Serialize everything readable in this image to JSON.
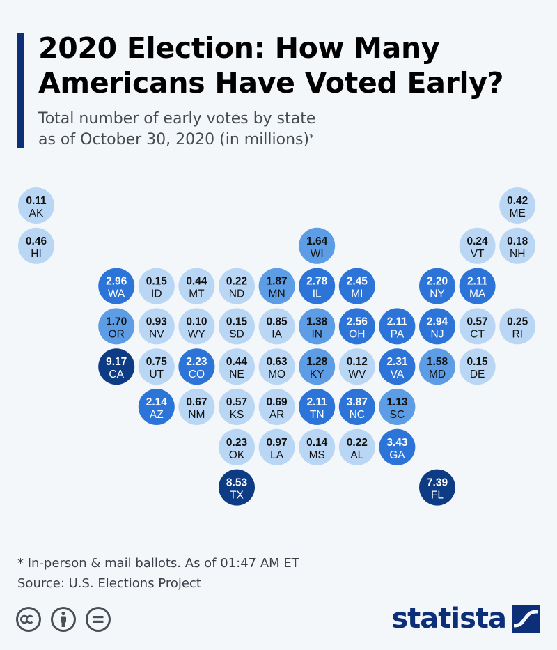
{
  "header": {
    "title_line1": "2020 Election: How Many",
    "title_line2": "Americans Have Voted Early?",
    "subtitle_line1": "Total number of early votes by state",
    "subtitle_line2": "as of October 30, 2020 (in millions)",
    "subtitle_mark": "*"
  },
  "footer": {
    "note": "* In-person & mail ballots. As of 01:47 AM ET",
    "source": "Source: U.S. Elections Project",
    "brand": "statista"
  },
  "colors": {
    "accent": "#0d2f77",
    "bin_low": "#b9d7f4",
    "bin_mid": "#5c9de6",
    "bin_high": "#2d74d8",
    "bin_max": "#0d3b84"
  },
  "chart_data": {
    "type": "tile-map",
    "unit": "millions",
    "states": [
      {
        "code": "AK",
        "value": 0.11,
        "row": 0,
        "col": 0
      },
      {
        "code": "ME",
        "value": 0.42,
        "row": 0,
        "col": 12
      },
      {
        "code": "HI",
        "value": 0.46,
        "row": 1,
        "col": 0
      },
      {
        "code": "WI",
        "value": 1.64,
        "row": 1,
        "col": 7
      },
      {
        "code": "VT",
        "value": 0.24,
        "row": 1,
        "col": 11
      },
      {
        "code": "NH",
        "value": 0.18,
        "row": 1,
        "col": 12
      },
      {
        "code": "WA",
        "value": 2.96,
        "row": 2,
        "col": 2
      },
      {
        "code": "ID",
        "value": 0.15,
        "row": 2,
        "col": 3
      },
      {
        "code": "MT",
        "value": 0.44,
        "row": 2,
        "col": 4
      },
      {
        "code": "ND",
        "value": 0.22,
        "row": 2,
        "col": 5
      },
      {
        "code": "MN",
        "value": 1.87,
        "row": 2,
        "col": 6
      },
      {
        "code": "IL",
        "value": 2.78,
        "row": 2,
        "col": 7
      },
      {
        "code": "MI",
        "value": 2.45,
        "row": 2,
        "col": 8
      },
      {
        "code": "NY",
        "value": 2.2,
        "row": 2,
        "col": 10
      },
      {
        "code": "MA",
        "value": 2.11,
        "row": 2,
        "col": 11
      },
      {
        "code": "OR",
        "value": 1.7,
        "row": 3,
        "col": 2
      },
      {
        "code": "NV",
        "value": 0.93,
        "row": 3,
        "col": 3
      },
      {
        "code": "WY",
        "value": 0.1,
        "row": 3,
        "col": 4
      },
      {
        "code": "SD",
        "value": 0.15,
        "row": 3,
        "col": 5
      },
      {
        "code": "IA",
        "value": 0.85,
        "row": 3,
        "col": 6
      },
      {
        "code": "IN",
        "value": 1.38,
        "row": 3,
        "col": 7
      },
      {
        "code": "OH",
        "value": 2.56,
        "row": 3,
        "col": 8
      },
      {
        "code": "PA",
        "value": 2.11,
        "row": 3,
        "col": 9
      },
      {
        "code": "NJ",
        "value": 2.94,
        "row": 3,
        "col": 10
      },
      {
        "code": "CT",
        "value": 0.57,
        "row": 3,
        "col": 11
      },
      {
        "code": "RI",
        "value": 0.25,
        "row": 3,
        "col": 12
      },
      {
        "code": "CA",
        "value": 9.17,
        "row": 4,
        "col": 2
      },
      {
        "code": "UT",
        "value": 0.75,
        "row": 4,
        "col": 3
      },
      {
        "code": "CO",
        "value": 2.23,
        "row": 4,
        "col": 4
      },
      {
        "code": "NE",
        "value": 0.44,
        "row": 4,
        "col": 5
      },
      {
        "code": "MO",
        "value": 0.63,
        "row": 4,
        "col": 6
      },
      {
        "code": "KY",
        "value": 1.28,
        "row": 4,
        "col": 7
      },
      {
        "code": "WV",
        "value": 0.12,
        "row": 4,
        "col": 8
      },
      {
        "code": "VA",
        "value": 2.31,
        "row": 4,
        "col": 9
      },
      {
        "code": "MD",
        "value": 1.58,
        "row": 4,
        "col": 10
      },
      {
        "code": "DE",
        "value": 0.15,
        "row": 4,
        "col": 11
      },
      {
        "code": "AZ",
        "value": 2.14,
        "row": 5,
        "col": 3
      },
      {
        "code": "NM",
        "value": 0.67,
        "row": 5,
        "col": 4
      },
      {
        "code": "KS",
        "value": 0.57,
        "row": 5,
        "col": 5
      },
      {
        "code": "AR",
        "value": 0.69,
        "row": 5,
        "col": 6
      },
      {
        "code": "TN",
        "value": 2.11,
        "row": 5,
        "col": 7
      },
      {
        "code": "NC",
        "value": 3.87,
        "row": 5,
        "col": 8
      },
      {
        "code": "SC",
        "value": 1.13,
        "row": 5,
        "col": 9
      },
      {
        "code": "OK",
        "value": 0.23,
        "row": 6,
        "col": 5
      },
      {
        "code": "LA",
        "value": 0.97,
        "row": 6,
        "col": 6
      },
      {
        "code": "MS",
        "value": 0.14,
        "row": 6,
        "col": 7
      },
      {
        "code": "AL",
        "value": 0.22,
        "row": 6,
        "col": 8
      },
      {
        "code": "GA",
        "value": 3.43,
        "row": 6,
        "col": 9
      },
      {
        "code": "TX",
        "value": 8.53,
        "row": 7,
        "col": 5
      },
      {
        "code": "FL",
        "value": 7.39,
        "row": 7,
        "col": 10
      }
    ]
  }
}
